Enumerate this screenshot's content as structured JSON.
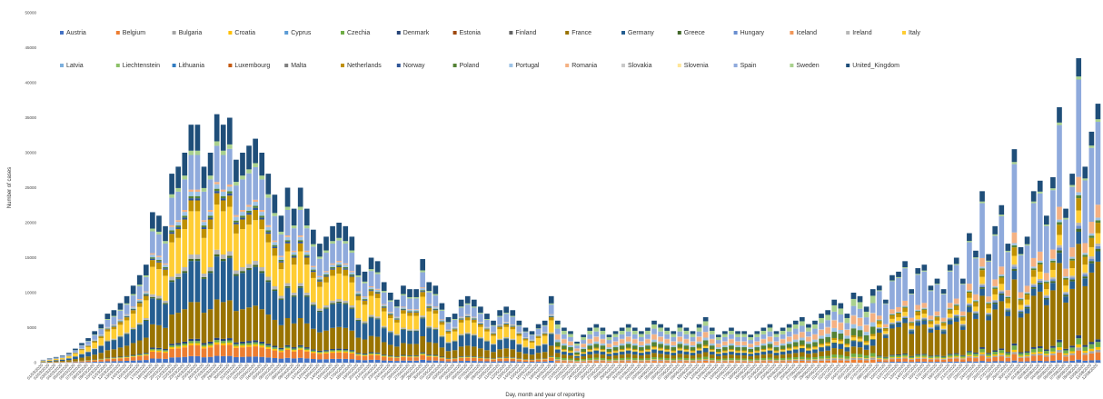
{
  "chart_data": {
    "type": "bar",
    "stacked": true,
    "title": "",
    "xlabel": "Day, month and year of reporting",
    "ylabel": "Number of cases",
    "ylim": [
      0,
      50000
    ],
    "y_ticks": [
      0,
      5000,
      10000,
      15000,
      20000,
      25000,
      30000,
      35000,
      40000,
      45000,
      50000
    ],
    "grid": false,
    "legend_position": "top",
    "start_date": "2020-03-01",
    "n_days": 167,
    "legend": [
      {
        "name": "Austria",
        "color": "#4472C4"
      },
      {
        "name": "Belgium",
        "color": "#ED7D31"
      },
      {
        "name": "Bulgaria",
        "color": "#A5A5A5"
      },
      {
        "name": "Croatia",
        "color": "#FFC000"
      },
      {
        "name": "Cyprus",
        "color": "#5B9BD5"
      },
      {
        "name": "Czechia",
        "color": "#70AD47"
      },
      {
        "name": "Denmark",
        "color": "#264478"
      },
      {
        "name": "Estonia",
        "color": "#9E480E"
      },
      {
        "name": "Finland",
        "color": "#636363"
      },
      {
        "name": "France",
        "color": "#997300"
      },
      {
        "name": "Germany",
        "color": "#255E91"
      },
      {
        "name": "Greece",
        "color": "#43682B"
      },
      {
        "name": "Hungary",
        "color": "#698ED0"
      },
      {
        "name": "Iceland",
        "color": "#F1975A"
      },
      {
        "name": "Ireland",
        "color": "#B7B7B7"
      },
      {
        "name": "Italy",
        "color": "#FFCD33"
      },
      {
        "name": "Latvia",
        "color": "#7CAFDD"
      },
      {
        "name": "Liechtenstein",
        "color": "#8CC168"
      },
      {
        "name": "Lithuania",
        "color": "#327DC2"
      },
      {
        "name": "Luxembourg",
        "color": "#C55A11"
      },
      {
        "name": "Malta",
        "color": "#7F7F7F"
      },
      {
        "name": "Netherlands",
        "color": "#BF9000"
      },
      {
        "name": "Norway",
        "color": "#2F5597"
      },
      {
        "name": "Poland",
        "color": "#548235"
      },
      {
        "name": "Portugal",
        "color": "#9DC3E6"
      },
      {
        "name": "Romania",
        "color": "#F4B183"
      },
      {
        "name": "Slovakia",
        "color": "#C9C9C9"
      },
      {
        "name": "Slovenia",
        "color": "#FFE699"
      },
      {
        "name": "Spain",
        "color": "#8FAADC"
      },
      {
        "name": "Sweden",
        "color": "#A9D18E"
      },
      {
        "name": "United_Kingdom",
        "color": "#1F4E79"
      }
    ],
    "values": [
      400,
      600,
      800,
      1000,
      1400,
      2000,
      2800,
      3500,
      4500,
      5500,
      7000,
      7500,
      8500,
      9500,
      11000,
      12500,
      14000,
      21500,
      21000,
      19500,
      27000,
      28000,
      30000,
      34000,
      34000,
      28000,
      30000,
      35500,
      34000,
      35000,
      29000,
      30000,
      31000,
      32000,
      30000,
      27000,
      24000,
      21000,
      25000,
      22000,
      25000,
      22000,
      19000,
      17000,
      18000,
      19500,
      20000,
      19500,
      18000,
      14000,
      13000,
      15000,
      14500,
      11500,
      10000,
      9000,
      11000,
      10500,
      10500,
      14800,
      11500,
      11000,
      8500,
      6500,
      7000,
      9000,
      9500,
      9000,
      8000,
      7000,
      6000,
      7500,
      8000,
      7500,
      6000,
      5000,
      4500,
      5500,
      6000,
      9500,
      6000,
      5000,
      4500,
      3000,
      4000,
      5000,
      5500,
      5000,
      4000,
      4500,
      5000,
      5500,
      5000,
      4500,
      5000,
      6000,
      5500,
      5000,
      4500,
      5500,
      5000,
      4500,
      5500,
      6500,
      5000,
      4000,
      4500,
      5000,
      4500,
      4500,
      4000,
      4500,
      5000,
      5500,
      4500,
      5000,
      5500,
      6000,
      6500,
      5500,
      6000,
      7000,
      7500,
      9000,
      8500,
      7000,
      10000,
      9500,
      8000,
      10500,
      11000,
      9000,
      12500,
      13000,
      14500,
      10500,
      13500,
      14000,
      11000,
      12000,
      10500,
      14000,
      15000,
      12000,
      18500,
      16000,
      24500,
      15500,
      19500,
      22500,
      17000,
      30500,
      16500,
      18000,
      24500,
      26000,
      21000,
      26500,
      36500,
      22000,
      27000,
      43500,
      28000,
      33000,
      37000
    ]
  }
}
